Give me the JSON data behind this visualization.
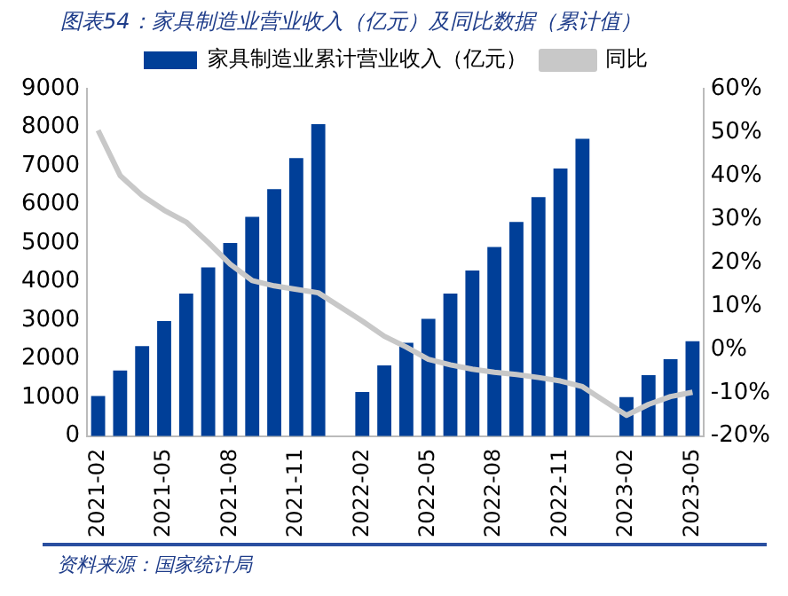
{
  "chart_data": {
    "type": "bar",
    "title": "图表54：家具制造业营业收入（亿元）及同比数据（累计值）",
    "categories": [
      "2021-02",
      null,
      null,
      "2021-05",
      null,
      null,
      "2021-08",
      null,
      null,
      "2021-11",
      null,
      null,
      "2022-02",
      null,
      null,
      "2022-05",
      null,
      null,
      "2022-08",
      null,
      null,
      "2022-11",
      null,
      null,
      "2023-02",
      null,
      null,
      "2023-05"
    ],
    "series": [
      {
        "name": "家具制造业累计营业收入（亿元）",
        "color": "#003f98",
        "values": [
          1040,
          1700,
          2330,
          2980,
          3690,
          4370,
          5000,
          5680,
          6400,
          7200,
          8080,
          null,
          1140,
          1830,
          2420,
          3040,
          3690,
          4290,
          4900,
          5550,
          6190,
          6930,
          7700,
          null,
          1010,
          1580,
          1990,
          2460
        ]
      },
      {
        "name": "同比",
        "type": "line",
        "axis": "y2",
        "color": "#c8c8c8",
        "values": [
          50.4,
          40,
          35.4,
          32,
          29.3,
          24.6,
          19.6,
          15.8,
          14.6,
          13.8,
          13,
          null,
          6.5,
          3,
          0.5,
          -2.3,
          -3.6,
          -4.6,
          -5.3,
          -5.8,
          -6.5,
          -7.3,
          -8.6,
          null,
          -15.2,
          -12.7,
          -10.9,
          -9.9
        ]
      }
    ],
    "ylim": [
      0,
      9000
    ],
    "yticks": [
      0,
      1000,
      2000,
      3000,
      4000,
      5000,
      6000,
      7000,
      8000,
      9000
    ],
    "y2lim": [
      -20,
      60
    ],
    "y2ticks": [
      {
        "value": -20,
        "label": "-20%"
      },
      {
        "value": -10,
        "label": "-10%"
      },
      {
        "value": 0,
        "label": "0%"
      },
      {
        "value": 10,
        "label": "10%"
      },
      {
        "value": 20,
        "label": "20%"
      },
      {
        "value": 30,
        "label": "30%"
      },
      {
        "value": 40,
        "label": "40%"
      },
      {
        "value": 50,
        "label": "50%"
      },
      {
        "value": 60,
        "label": "60%"
      }
    ],
    "legend": "top",
    "grid": false,
    "marker": "none",
    "annotations": [
      "资料来源：国家统计局"
    ]
  }
}
